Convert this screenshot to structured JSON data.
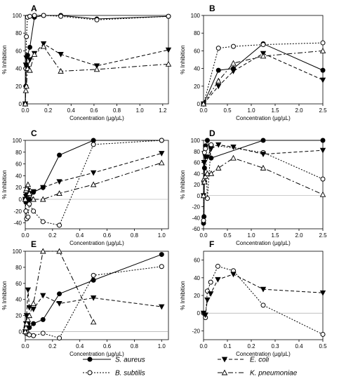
{
  "styles": {
    "S. aureus": {
      "marker": "filled-circle",
      "dash": "none"
    },
    "B. subtilis": {
      "marker": "open-circle",
      "dash": "2,2"
    },
    "E. coli": {
      "marker": "filled-tri-down",
      "dash": "5,3"
    },
    "K. pneumoniae": {
      "marker": "open-tri-up",
      "dash": "7,3,2,3"
    }
  },
  "legend": [
    {
      "label": "S. aureus",
      "style": "S. aureus"
    },
    {
      "label": "B. subtilis",
      "style": "B. subtilis"
    },
    {
      "label": "E. coli",
      "style": "E. coli"
    },
    {
      "label": "K. pneumoniae",
      "style": "K. pneumoniae"
    }
  ],
  "chart_data": [
    {
      "panel": "A",
      "type": "line",
      "xlabel": "Concentration (µg/µL)",
      "ylabel": "% Inhibition",
      "xlim": [
        0,
        1.25
      ],
      "ylim": [
        0,
        100
      ],
      "xticks": [
        "0.0",
        "0.2",
        "0.4",
        "0.6",
        "0.8",
        "1.0",
        "1.2"
      ],
      "xtick_values": [
        0,
        0.2,
        0.4,
        0.6,
        0.8,
        1.0,
        1.2
      ],
      "yticks": [
        0,
        20,
        40,
        60,
        80,
        100
      ],
      "zero_line": false,
      "series": [
        {
          "name": "S. aureus",
          "x": [
            0,
            0.005,
            0.01,
            0.02,
            0.04,
            0.08,
            0.16,
            0.31,
            0.625,
            1.25
          ],
          "y": [
            0,
            20,
            44,
            55,
            64,
            98,
            100,
            100,
            96,
            99
          ]
        },
        {
          "name": "B. subtilis",
          "x": [
            0,
            0.005,
            0.01,
            0.02,
            0.04,
            0.08,
            0.16,
            0.31,
            0.625,
            1.25
          ],
          "y": [
            0,
            40,
            76,
            98,
            99,
            100,
            100,
            99,
            95,
            99
          ]
        },
        {
          "name": "E. coli",
          "x": [
            0,
            0.005,
            0.01,
            0.02,
            0.04,
            0.08,
            0.16,
            0.31,
            0.625,
            1.25
          ],
          "y": [
            0,
            44,
            52,
            40,
            50,
            57,
            68,
            56,
            43,
            61
          ]
        },
        {
          "name": "K. pneumoniae",
          "x": [
            0,
            0.005,
            0.01,
            0.02,
            0.04,
            0.08,
            0.16,
            0.31,
            0.625,
            1.25
          ],
          "y": [
            0,
            15,
            20,
            40,
            38,
            56,
            65,
            37,
            39,
            45
          ]
        }
      ]
    },
    {
      "panel": "B",
      "type": "line",
      "xlabel": "Concentration (µg/µL)",
      "ylabel": "% Inhibition",
      "xlim": [
        0,
        2.5
      ],
      "ylim": [
        0,
        100
      ],
      "xticks": [
        "0.0",
        "0.5",
        "1.0",
        "1.5",
        "2.0",
        "2.5"
      ],
      "xtick_values": [
        0,
        0.5,
        1.0,
        1.5,
        2.0,
        2.5
      ],
      "yticks": [
        0,
        20,
        40,
        60,
        80,
        100
      ],
      "zero_line": false,
      "series": [
        {
          "name": "S. aureus",
          "x": [
            0,
            0.3125,
            0.625,
            1.25,
            2.5
          ],
          "y": [
            0,
            38,
            40,
            68,
            38
          ]
        },
        {
          "name": "B. subtilis",
          "x": [
            0,
            0.3125,
            0.625,
            1.25,
            2.5
          ],
          "y": [
            0,
            63,
            65,
            67,
            69
          ]
        },
        {
          "name": "E. coli",
          "x": [
            0,
            0.3125,
            0.625,
            1.25,
            2.5
          ],
          "y": [
            0,
            20,
            37,
            57,
            27
          ]
        },
        {
          "name": "K. pneumoniae",
          "x": [
            0,
            0.3125,
            0.625,
            1.25,
            2.5
          ],
          "y": [
            0,
            26,
            46,
            54,
            60
          ]
        }
      ]
    },
    {
      "panel": "C",
      "type": "line",
      "xlabel": "Concentration (µg/µL)",
      "ylabel": "% Inhibition",
      "xlim": [
        0,
        1.05
      ],
      "ylim": [
        -50,
        100
      ],
      "xticks": [
        "0.0",
        "0.2",
        "0.4",
        "0.6",
        "0.8",
        "1.0"
      ],
      "xtick_values": [
        0,
        0.2,
        0.4,
        0.6,
        0.8,
        1.0
      ],
      "yticks": [
        -40,
        -20,
        0,
        20,
        40,
        60,
        80,
        100
      ],
      "zero_line": true,
      "series": [
        {
          "name": "S. aureus",
          "x": [
            0,
            0.005,
            0.01,
            0.02,
            0.03,
            0.06,
            0.13,
            0.25,
            0.5,
            1.0
          ],
          "y": [
            0,
            -5,
            8,
            10,
            0,
            12,
            20,
            75,
            100,
            100
          ]
        },
        {
          "name": "B. subtilis",
          "x": [
            0,
            0.005,
            0.01,
            0.02,
            0.03,
            0.06,
            0.13,
            0.25,
            0.5,
            1.0
          ],
          "y": [
            0,
            -20,
            -33,
            -30,
            -8,
            -20,
            -38,
            -44,
            93,
            100
          ]
        },
        {
          "name": "E. coli",
          "x": [
            0,
            0.005,
            0.01,
            0.02,
            0.03,
            0.06,
            0.13,
            0.25,
            0.5,
            1.0
          ],
          "y": [
            0,
            5,
            10,
            15,
            10,
            13,
            20,
            30,
            45,
            78
          ]
        },
        {
          "name": "K. pneumoniae",
          "x": [
            0,
            0.005,
            0.01,
            0.02,
            0.03,
            0.06,
            0.13,
            0.25,
            0.5,
            1.0
          ],
          "y": [
            0,
            15,
            18,
            25,
            10,
            0,
            0,
            10,
            25,
            62
          ]
        }
      ]
    },
    {
      "panel": "D",
      "type": "line",
      "xlabel": "Concentration (µg/µL)",
      "ylabel": "% Inhibition",
      "xlim": [
        0,
        2.5
      ],
      "ylim": [
        -60,
        100
      ],
      "xticks": [
        "0.0",
        "0.5",
        "1.0",
        "1.5",
        "2.0",
        "2.5"
      ],
      "xtick_values": [
        0,
        0.5,
        1.0,
        1.5,
        2.0,
        2.5
      ],
      "yticks": [
        -60,
        -40,
        -20,
        0,
        20,
        40,
        60,
        80,
        100
      ],
      "zero_line": true,
      "series": [
        {
          "name": "S. aureus",
          "x": [
            0,
            0.01,
            0.02,
            0.04,
            0.08,
            0.16,
            1.25,
            2.5
          ],
          "y": [
            -50,
            -38,
            50,
            90,
            100,
            68,
            100,
            100
          ]
        },
        {
          "name": "B. subtilis",
          "x": [
            0,
            0.01,
            0.02,
            0.04,
            0.08,
            0.16,
            1.25,
            2.5
          ],
          "y": [
            -45,
            25,
            78,
            85,
            -5,
            92,
            78,
            30
          ]
        },
        {
          "name": "E. coli",
          "x": [
            0,
            0.01,
            0.02,
            0.04,
            0.08,
            0.16,
            0.3125,
            0.625,
            1.25,
            2.5
          ],
          "y": [
            0,
            60,
            60,
            70,
            70,
            85,
            92,
            88,
            75,
            82
          ]
        },
        {
          "name": "K. pneumoniae",
          "x": [
            0,
            0.01,
            0.02,
            0.04,
            0.08,
            0.16,
            0.3125,
            0.625,
            1.25,
            2.5
          ],
          "y": [
            0,
            30,
            25,
            35,
            40,
            40,
            50,
            68,
            50,
            2
          ]
        }
      ]
    },
    {
      "panel": "E",
      "type": "line",
      "xlabel": "Concentration (µg/µL)",
      "ylabel": "% Inhibition",
      "xlim": [
        0,
        1.05
      ],
      "ylim": [
        -10,
        100
      ],
      "xticks": [
        "0.0",
        "0.2",
        "0.4",
        "0.6",
        "0.8",
        "1.0"
      ],
      "xtick_values": [
        0,
        0.2,
        0.4,
        0.6,
        0.8,
        1.0
      ],
      "yticks": [
        0,
        20,
        40,
        60,
        80,
        100
      ],
      "zero_line": true,
      "series": [
        {
          "name": "S. aureus",
          "x": [
            0,
            0.005,
            0.01,
            0.02,
            0.03,
            0.06,
            0.13,
            0.25,
            0.5,
            1.0
          ],
          "y": [
            0,
            5,
            8,
            10,
            5,
            10,
            15,
            47,
            64,
            96
          ]
        },
        {
          "name": "B. subtilis",
          "x": [
            0,
            0.005,
            0.01,
            0.02,
            0.03,
            0.06,
            0.13,
            0.25,
            0.5,
            1.0
          ],
          "y": [
            0,
            -2,
            0,
            -3,
            -4,
            -5,
            -2,
            -8,
            70,
            81
          ]
        },
        {
          "name": "E. coli",
          "x": [
            0,
            0.005,
            0.01,
            0.02,
            0.03,
            0.06,
            0.13,
            0.25,
            0.5,
            1.0
          ],
          "y": [
            0,
            10,
            20,
            52,
            30,
            28,
            45,
            35,
            42,
            31
          ]
        },
        {
          "name": "K. pneumoniae",
          "x": [
            0,
            0.005,
            0.01,
            0.02,
            0.03,
            0.06,
            0.13,
            0.25,
            0.5
          ],
          "y": [
            0,
            5,
            10,
            15,
            20,
            35,
            100,
            100,
            12
          ]
        }
      ]
    },
    {
      "panel": "F",
      "type": "line",
      "xlabel": "Concentration (µg/µL)",
      "ylabel": "% Inhibition",
      "xlim": [
        0,
        0.5
      ],
      "ylim": [
        -30,
        70
      ],
      "xticks": [
        "0.0",
        "0.1",
        "0.2",
        "0.3",
        "0.4",
        "0.5"
      ],
      "xtick_values": [
        0,
        0.1,
        0.2,
        0.3,
        0.4,
        0.5
      ],
      "yticks": [
        -20,
        0,
        20,
        40,
        60
      ],
      "zero_line": true,
      "series": [
        {
          "name": "B. subtilis",
          "x": [
            0,
            0.008,
            0.016,
            0.03,
            0.06,
            0.125,
            0.25,
            0.5
          ],
          "y": [
            0,
            -5,
            25,
            35,
            53,
            48,
            9,
            -24
          ]
        },
        {
          "name": "E. coli",
          "x": [
            0,
            0.008,
            0.016,
            0.03,
            0.06,
            0.125,
            0.25,
            0.5
          ],
          "y": [
            0,
            -2,
            15,
            22,
            38,
            44,
            27,
            23
          ]
        }
      ]
    }
  ]
}
